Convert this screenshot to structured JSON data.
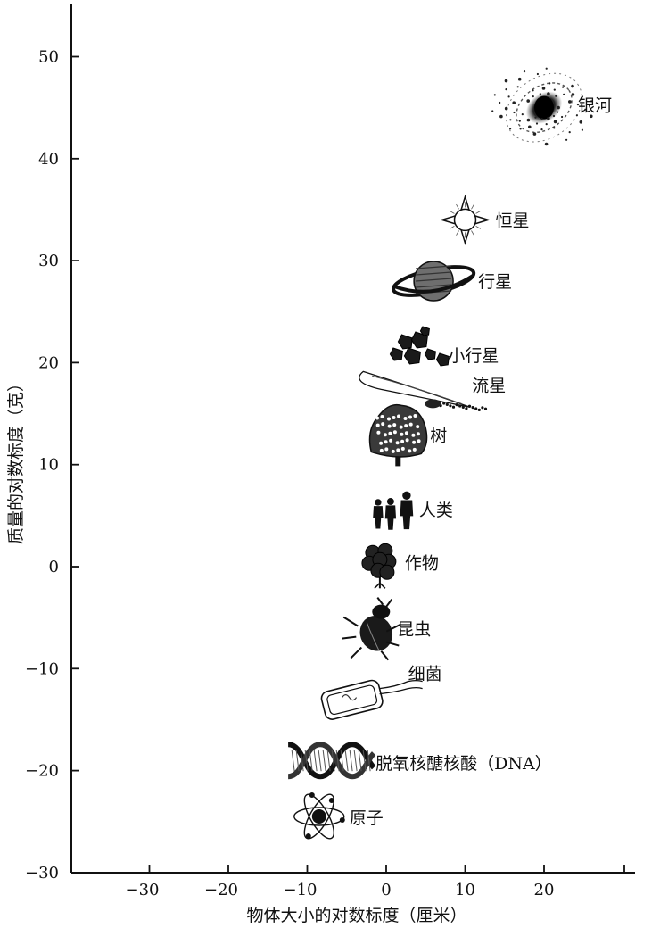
{
  "chart_data": {
    "type": "scatter",
    "title": "",
    "xlabel": "物体大小的对数标度（厘米）",
    "ylabel": "质量的对数标度（克）",
    "xlim": [
      -40,
      30
    ],
    "ylim": [
      -30,
      55
    ],
    "xticks": [
      -30,
      -20,
      -10,
      0,
      10,
      20
    ],
    "xtick_labels": [
      "−30",
      "−20",
      "−10",
      "0",
      "10",
      "20"
    ],
    "yticks": [
      -30,
      -20,
      -10,
      0,
      10,
      20,
      30,
      40,
      50
    ],
    "ytick_labels": [
      "−30",
      "−20",
      "−10",
      "0",
      "10",
      "20",
      "30",
      "40",
      "50"
    ],
    "grid": false,
    "points": [
      {
        "label": "银河",
        "icon": "galaxy-icon",
        "x": 20,
        "y": 45
      },
      {
        "label": "恒星",
        "icon": "star-icon",
        "x": 10,
        "y": 34
      },
      {
        "label": "行星",
        "icon": "planet-icon",
        "x": 6,
        "y": 28
      },
      {
        "label": "小行星",
        "icon": "asteroids-icon",
        "x": 4,
        "y": 21
      },
      {
        "label": "流星",
        "icon": "meteor-icon",
        "x": 5,
        "y": 16.5
      },
      {
        "label": "树",
        "icon": "tree-icon",
        "x": 1.5,
        "y": 13
      },
      {
        "label": "人类",
        "icon": "humans-icon",
        "x": 1,
        "y": 5.5
      },
      {
        "label": "作物",
        "icon": "crop-icon",
        "x": -0.8,
        "y": 0.5
      },
      {
        "label": "昆虫",
        "icon": "insect-icon",
        "x": -2,
        "y": -6
      },
      {
        "label": "细菌",
        "icon": "bacterium-icon",
        "x": -4,
        "y": -13
      },
      {
        "label": "脱氧核醣核酸（DNA）",
        "icon": "dna-helix-icon",
        "x": -7,
        "y": -19
      },
      {
        "label": "原子",
        "icon": "atom-icon",
        "x": -8.5,
        "y": -24.5
      }
    ]
  }
}
